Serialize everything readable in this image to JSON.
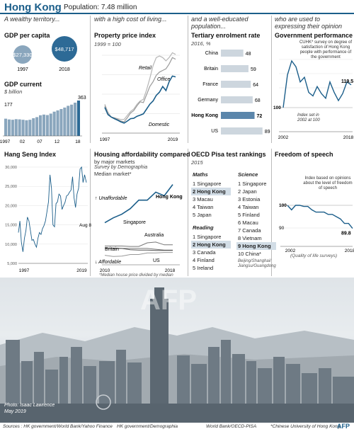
{
  "header": {
    "title": "Hong Kong",
    "population": "Population: 7.48 million"
  },
  "intro": {
    "col1": "A wealthy territory...",
    "col2": "with a high cost of living...",
    "col3": "and a well-educated population...",
    "col4": "who are used to expressing their opinion"
  },
  "gdp_per_capita": {
    "title": "GDP per capita",
    "v1997": "$27,330",
    "v2018": "$48,717",
    "y1997": "1997",
    "y2018": "2018"
  },
  "gdp_current": {
    "title": "GDP current",
    "unit": "$ billion",
    "start_label": "177",
    "end_label": "363",
    "xticks": [
      "1997",
      "02",
      "07",
      "12",
      "18"
    ]
  },
  "property": {
    "title": "Property price index",
    "base": "1999 = 100",
    "labels": [
      "Retail",
      "Office",
      "Domestic"
    ],
    "xticks": [
      "1997",
      "2019"
    ]
  },
  "tertiary": {
    "title": "Tertiary enrolment rate",
    "sub": "2016, %"
  },
  "govperf": {
    "title": "Government performance",
    "note": "CUHK* survey on degree of satisfaction of Hong Kong people with performance of the government",
    "end_label": "119.5",
    "base_note": "Index set in 2002 at 100",
    "y100": "100",
    "xticks": [
      "2002",
      "2018"
    ]
  },
  "hangseng": {
    "title": "Hang Seng Index",
    "end_label": "Aug 8",
    "xticks": [
      "1997",
      "2019"
    ]
  },
  "housing": {
    "title": "Housing affordability compared",
    "sub1": "by major markets",
    "sub2": "Survey by Demographia",
    "sub3": "Median market*",
    "unaffordable": "Unaffordable",
    "affordable": "Affordable",
    "labels": [
      "Hong Kong",
      "Singapore",
      "Australia",
      "Britain",
      "US"
    ],
    "xticks": [
      "2010",
      "2018"
    ],
    "note": "*Median house price divided by median household income"
  },
  "pisa": {
    "title": "OECD Pisa test rankings",
    "sub": "2015",
    "maths_title": "Maths",
    "reading_title": "Reading",
    "science_title": "Science",
    "maths": [
      "1 Singapore",
      "2 Hong Kong",
      "3 Macau",
      "4 Taiwan",
      "5 Japan"
    ],
    "reading": [
      "1 Singapore",
      "2 Hong Kong",
      "3 Canada",
      "4 Finland",
      "5 Ireland"
    ],
    "science": [
      "1 Singapore",
      "2 Japan",
      "3 Estonia",
      "4 Taiwan",
      "5 Finland",
      "6 Macau",
      "7 Canada",
      "8 Vietnam",
      "9 Hong Kong",
      "10 China*"
    ],
    "china_note": "Beijing/Shanghai/ Jiangsu/Guangdong"
  },
  "speech": {
    "title": "Freedom of speech",
    "note": "Index based on opinions about the level of freedom of speech",
    "y100": "100",
    "y90": "90",
    "end_label": "89.8",
    "xticks": [
      "2002",
      "2018"
    ],
    "footnote": "(Quality of life surveys)"
  },
  "photo": {
    "credit": "Photo: Isaac Lawrence May 2019",
    "watermark": "AFP"
  },
  "footer": {
    "s1": "Sources : HK government/World Bank/Yahoo Finance",
    "s2": "HK government/Demographia",
    "s3": "World Bank/OECD-PISA",
    "s4": "*Chinese University of Hong Kong",
    "logo": "AFP"
  },
  "colors": {
    "accent": "#1b5e8a",
    "bar": "#8aa6bd",
    "highlight": "#5b86ab",
    "line": "#1b5e8a",
    "grey": "#999999"
  },
  "chart_data": [
    {
      "type": "bar",
      "title": "GDP per capita",
      "categories": [
        "1997",
        "2018"
      ],
      "values": [
        27330,
        48717
      ],
      "labels": [
        "$27,330",
        "$48,717"
      ]
    },
    {
      "type": "bar",
      "title": "GDP current",
      "ylabel": "$ billion",
      "categories": [
        "1997",
        "1998",
        "1999",
        "2000",
        "2001",
        "2002",
        "2003",
        "2004",
        "2005",
        "2006",
        "2007",
        "2008",
        "2009",
        "2010",
        "2011",
        "2012",
        "2013",
        "2014",
        "2015",
        "2016",
        "2017",
        "2018"
      ],
      "values": [
        177,
        169,
        166,
        172,
        170,
        166,
        161,
        166,
        182,
        193,
        212,
        219,
        214,
        229,
        249,
        262,
        276,
        291,
        309,
        321,
        341,
        363
      ]
    },
    {
      "type": "line",
      "title": "Property price index",
      "xlim": [
        1997,
        2019
      ],
      "x": [
        1997,
        1998,
        1999,
        2000,
        2001,
        2002,
        2003,
        2004,
        2005,
        2006,
        2007,
        2008,
        2009,
        2010,
        2011,
        2012,
        2013,
        2014,
        2015,
        2016,
        2017,
        2018,
        2019
      ],
      "series": [
        {
          "name": "Retail",
          "values": [
            180,
            130,
            100,
            95,
            90,
            85,
            85,
            110,
            135,
            150,
            180,
            200,
            210,
            270,
            340,
            420,
            470,
            480,
            470,
            450,
            470,
            500,
            490
          ]
        },
        {
          "name": "Office",
          "values": [
            170,
            120,
            100,
            95,
            85,
            75,
            70,
            95,
            125,
            140,
            170,
            195,
            190,
            240,
            290,
            320,
            360,
            380,
            390,
            400,
            430,
            470,
            460
          ]
        },
        {
          "name": "Domestic",
          "values": [
            160,
            115,
            100,
            90,
            80,
            70,
            62,
            75,
            90,
            92,
            105,
            112,
            120,
            150,
            180,
            200,
            235,
            255,
            290,
            265,
            320,
            355,
            350
          ]
        }
      ]
    },
    {
      "type": "bar",
      "title": "Tertiary enrolment rate",
      "ylabel": "2016, %",
      "categories": [
        "China",
        "Britain",
        "France",
        "Germany",
        "Hong Kong",
        "US"
      ],
      "values": [
        48,
        59,
        64,
        68,
        72,
        89
      ]
    },
    {
      "type": "line",
      "title": "Government performance",
      "xlim": [
        2002,
        2018
      ],
      "x": [
        2002,
        2003,
        2004,
        2005,
        2006,
        2007,
        2008,
        2009,
        2010,
        2011,
        2012,
        2013,
        2014,
        2015,
        2016,
        2017,
        2018
      ],
      "series": [
        {
          "name": "Government performance",
          "values": [
            100,
            128,
            140,
            135,
            122,
            126,
            113,
            110,
            118,
            112,
            108,
            122,
            113,
            106,
            112,
            122,
            119.5
          ]
        }
      ]
    },
    {
      "type": "line",
      "title": "Hang Seng Index",
      "ylim": [
        5000,
        30000
      ],
      "xlim": [
        1997,
        2019
      ],
      "yticks": [
        5000,
        10000,
        15000,
        20000,
        25000,
        30000
      ],
      "x": [
        1997,
        1997.5,
        1998,
        1998.5,
        1999,
        1999.5,
        2000,
        2000.5,
        2001,
        2001.5,
        2002,
        2002.5,
        2003,
        2003.5,
        2004,
        2004.5,
        2005,
        2005.5,
        2006,
        2006.5,
        2007,
        2007.5,
        2008,
        2008.5,
        2009,
        2009.5,
        2010,
        2010.5,
        2011,
        2011.5,
        2012,
        2012.5,
        2013,
        2013.5,
        2014,
        2014.5,
        2015,
        2015.5,
        2016,
        2016.5,
        2017,
        2017.5,
        2018,
        2018.5,
        2019,
        2019.6
      ],
      "series": [
        {
          "name": "Hang Seng Index",
          "values": [
            13000,
            16000,
            10500,
            8000,
            11500,
            13500,
            17000,
            16000,
            13500,
            11000,
            11200,
            10000,
            9200,
            11500,
            13000,
            12500,
            14000,
            14800,
            16000,
            18500,
            21000,
            28000,
            24500,
            15000,
            14500,
            20500,
            21000,
            23000,
            22500,
            19000,
            20000,
            20800,
            22500,
            22800,
            23500,
            24000,
            27500,
            22000,
            19500,
            23000,
            24500,
            29500,
            30000,
            26000,
            28000,
            26000
          ]
        }
      ]
    },
    {
      "type": "line",
      "title": "Housing affordability compared",
      "xlim": [
        2010,
        2018
      ],
      "x": [
        2010,
        2011,
        2012,
        2013,
        2014,
        2015,
        2016,
        2017,
        2018
      ],
      "series": [
        {
          "name": "Hong Kong",
          "values": [
            11.4,
            12.6,
            13.5,
            14.9,
            17.0,
            17.0,
            19.0,
            18.1,
            20.9
          ]
        },
        {
          "name": "Singapore",
          "values": [
            5.1,
            5.0,
            5.0,
            5.0,
            5.0,
            5.0,
            4.8,
            4.6,
            4.6
          ]
        },
        {
          "name": "Australia",
          "values": [
            5.6,
            5.6,
            5.6,
            5.5,
            5.5,
            6.4,
            6.6,
            5.9,
            5.9
          ]
        },
        {
          "name": "Britain",
          "values": [
            5.1,
            5.1,
            5.0,
            4.7,
            4.6,
            4.6,
            4.5,
            4.5,
            4.5
          ]
        },
        {
          "name": "US",
          "values": [
            3.3,
            3.0,
            3.1,
            3.5,
            3.5,
            3.9,
            3.9,
            4.0,
            4.0
          ]
        }
      ]
    },
    {
      "type": "line",
      "title": "Freedom of speech",
      "xlim": [
        2002,
        2018
      ],
      "x": [
        2002,
        2003,
        2004,
        2005,
        2006,
        2007,
        2008,
        2009,
        2010,
        2011,
        2012,
        2013,
        2014,
        2015,
        2016,
        2017,
        2018
      ],
      "series": [
        {
          "name": "Freedom of speech",
          "values": [
            100,
            98,
            100,
            100,
            99.5,
            99.5,
            98,
            97,
            97,
            97,
            96,
            96,
            95,
            94,
            92,
            92,
            89.8
          ]
        }
      ]
    }
  ]
}
